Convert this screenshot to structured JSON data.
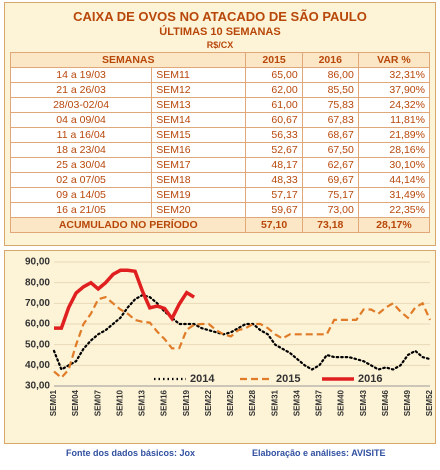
{
  "header": {
    "title": "CAIXA DE OVOS NO ATACADO DE SÃO PAULO",
    "subtitle": "ÚLTIMAS 10 SEMANAS",
    "unit": "R$/CX"
  },
  "table": {
    "columns": [
      "SEMANAS",
      "2015",
      "2016",
      "VAR %"
    ],
    "rows": [
      [
        "14 a 19/03",
        "SEM11",
        "65,00",
        "86,00",
        "32,31%"
      ],
      [
        "21 a 26/03",
        "SEM12",
        "62,00",
        "85,50",
        "37,90%"
      ],
      [
        "28/03-02/04",
        "SEM13",
        "61,00",
        "75,83",
        "24,32%"
      ],
      [
        "04 a 09/04",
        "SEM14",
        "60,67",
        "67,83",
        "11,81%"
      ],
      [
        "11 a 16/04",
        "SEM15",
        "56,33",
        "68,67",
        "21,89%"
      ],
      [
        "18 a 23/04",
        "SEM16",
        "52,67",
        "67,50",
        "28,16%"
      ],
      [
        "25 a 30/04",
        "SEM17",
        "48,17",
        "62,67",
        "30,10%"
      ],
      [
        "02 a 07/05",
        "SEM18",
        "48,33",
        "69,67",
        "44,14%"
      ],
      [
        "09 a 14/05",
        "SEM19",
        "57,17",
        "75,17",
        "31,49%"
      ],
      [
        "16 a 21/05",
        "SEM20",
        "59,67",
        "73,00",
        "22,35%"
      ]
    ],
    "total": [
      "ACUMULADO NO PERÍODO",
      "57,10",
      "73,18",
      "28,17%"
    ]
  },
  "chart_data": {
    "type": "line",
    "categories": [
      "SEM01",
      null,
      null,
      "SEM04",
      null,
      null,
      "SEM07",
      null,
      null,
      "SEM10",
      null,
      null,
      "SEM13",
      null,
      null,
      "SEM16",
      null,
      null,
      "SEM19",
      null,
      null,
      "SEM22",
      null,
      null,
      "SEM25",
      null,
      null,
      "SEM28",
      null,
      null,
      "SEM31",
      null,
      null,
      "SEM34",
      null,
      null,
      "SEM37",
      null,
      null,
      "SEM40",
      null,
      null,
      "SEM43",
      null,
      null,
      "SEM46",
      null,
      null,
      "SEM49",
      null,
      null,
      "SEM52"
    ],
    "ylim": [
      30,
      90
    ],
    "yticks": [
      {
        "value": 30,
        "label": "30,00"
      },
      {
        "value": 40,
        "label": "40,00"
      },
      {
        "value": 50,
        "label": "50,00"
      },
      {
        "value": 60,
        "label": "60,00"
      },
      {
        "value": 70,
        "label": "70,00"
      },
      {
        "value": 80,
        "label": "80,00"
      },
      {
        "value": 90,
        "label": "90,00"
      }
    ],
    "grid": true,
    "series": [
      {
        "name": "2014",
        "color": "#000000",
        "style": "dotted",
        "values": [
          47,
          38,
          40,
          42,
          48,
          52,
          55,
          57,
          60,
          63,
          68,
          72,
          74,
          73,
          70,
          66,
          63,
          60,
          60,
          60,
          58,
          57,
          56,
          55,
          56,
          58,
          60,
          60,
          57,
          55,
          50,
          48,
          46,
          43,
          40,
          38,
          40,
          45,
          44,
          44,
          44,
          43,
          42,
          40,
          38,
          39,
          38,
          40,
          45,
          47,
          44,
          43
        ]
      },
      {
        "name": "2015",
        "color": "#e07b28",
        "style": "dashed",
        "values": [
          37,
          34,
          38,
          50,
          60,
          65,
          72,
          73,
          70,
          67,
          65,
          62,
          61,
          60.67,
          56.33,
          52.67,
          48.17,
          48.33,
          57.17,
          59.67,
          60,
          60,
          57,
          55,
          54,
          57,
          58,
          60,
          60,
          58,
          55,
          53,
          55,
          55,
          55,
          55,
          55,
          55,
          62,
          62,
          62,
          62,
          67,
          67,
          65,
          68,
          70,
          66,
          63,
          68,
          70,
          62
        ]
      },
      {
        "name": "2016",
        "color": "#e02020",
        "style": "solid",
        "values": [
          58,
          58,
          68,
          75,
          78,
          80,
          77,
          80,
          84,
          86,
          86,
          85.5,
          75.83,
          67.83,
          68.67,
          67.5,
          62.67,
          69.67,
          75.17,
          73,
          null,
          null,
          null,
          null,
          null,
          null,
          null,
          null,
          null,
          null,
          null,
          null,
          null,
          null,
          null,
          null,
          null,
          null,
          null,
          null,
          null,
          null,
          null,
          null,
          null,
          null,
          null,
          null,
          null,
          null,
          null,
          null
        ]
      }
    ]
  },
  "footer": {
    "source": "Fonte dos dados básicos: Jox",
    "analysis": "Elaboração e análises: AVISITE"
  }
}
